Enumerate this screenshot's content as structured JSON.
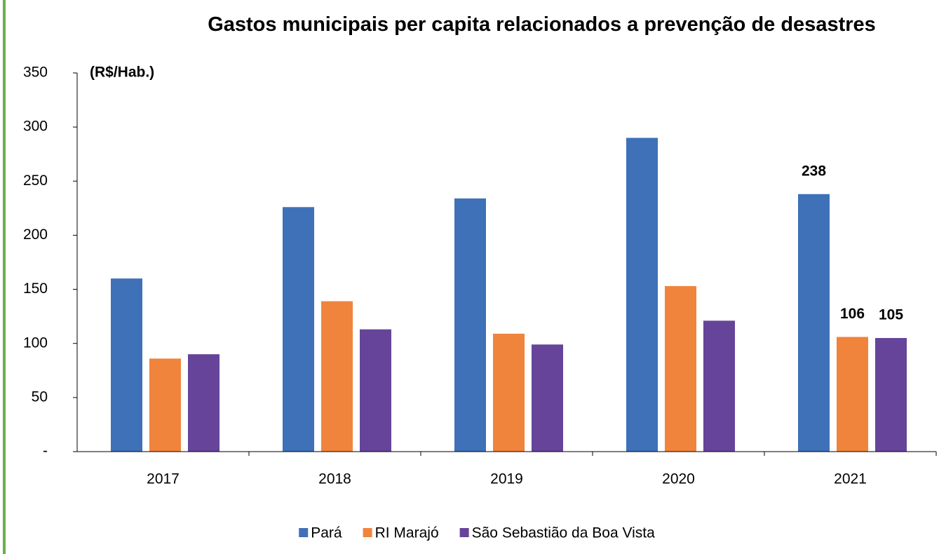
{
  "chart_data": {
    "type": "bar",
    "title": "Gastos municipais per capita relacionados a prevenção de desastres",
    "y_label": "(R$/Hab.)",
    "categories": [
      "2017",
      "2018",
      "2019",
      "2020",
      "2021"
    ],
    "series": [
      {
        "name": "Pará",
        "color": "#3e71b8",
        "values": [
          160,
          226,
          234,
          290,
          238
        ],
        "value_labels": [
          null,
          null,
          null,
          null,
          "238"
        ]
      },
      {
        "name": "RI Marajó",
        "color": "#f0843c",
        "values": [
          86,
          139,
          109,
          153,
          106
        ],
        "value_labels": [
          null,
          null,
          null,
          null,
          "106"
        ]
      },
      {
        "name": "São Sebastião da Boa Vista",
        "color": "#65449a",
        "values": [
          90,
          113,
          99,
          121,
          105
        ],
        "value_labels": [
          null,
          null,
          null,
          null,
          "105"
        ]
      }
    ],
    "ylim": [
      0,
      350
    ],
    "yticks": [
      {
        "value": 0,
        "label": "-"
      },
      50,
      100,
      150,
      200,
      250,
      300,
      350
    ],
    "grid": false,
    "legend": "bottom"
  }
}
